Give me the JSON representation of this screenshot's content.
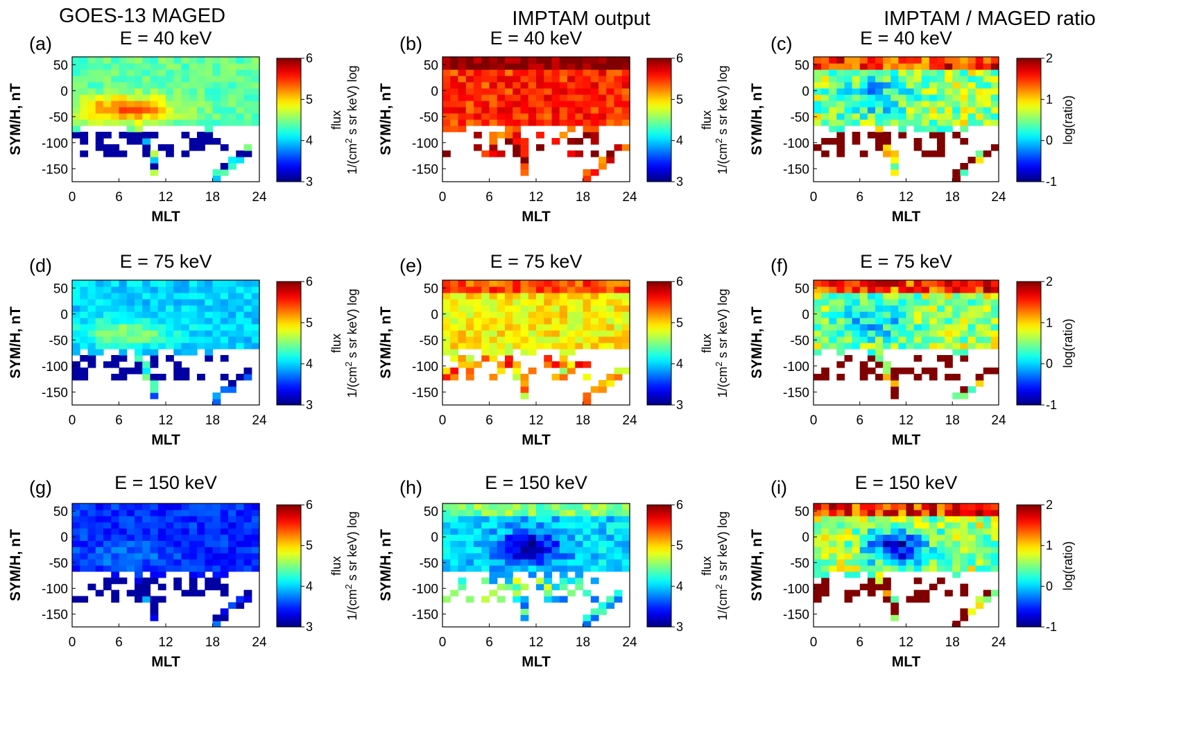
{
  "columns": [
    {
      "title": "GOES-13  MAGED"
    },
    {
      "title": "IMPTAM output"
    },
    {
      "title": "IMPTAM / MAGED ratio"
    }
  ],
  "colorbars": {
    "flux": {
      "ticks": [
        "3",
        "4",
        "5",
        "6"
      ],
      "label_top": "flux",
      "label_bottom_prefix": "1/(cm",
      "label_sup": "2",
      "label_bottom_suffix": " s sr keV) log",
      "range": [
        3,
        6
      ]
    },
    "ratio": {
      "ticks": [
        "-1",
        "0",
        "1",
        "2"
      ],
      "label": "log(ratio)",
      "range": [
        -1,
        2
      ]
    }
  },
  "axes": {
    "xlabel": "MLT",
    "ylabel": "SYM/H, nT",
    "xticks": [
      "0",
      "6",
      "12",
      "18",
      "24"
    ],
    "yticks": [
      "50",
      "0",
      "-50",
      "-100",
      "-150"
    ]
  },
  "panels": [
    {
      "label": "(a)",
      "title": "E = 40 keV"
    },
    {
      "label": "(b)",
      "title": "E = 40 keV"
    },
    {
      "label": "(c)",
      "title": "E = 40 keV"
    },
    {
      "label": "(d)",
      "title": "E = 75 keV"
    },
    {
      "label": "(e)",
      "title": "E = 75 keV"
    },
    {
      "label": "(f)",
      "title": "E = 75 keV"
    },
    {
      "label": "(g)",
      "title": "E = 150 keV"
    },
    {
      "label": "(h)",
      "title": "E = 150 keV"
    },
    {
      "label": "(i)",
      "title": "E = 150 keV"
    }
  ],
  "chart_data": [
    {
      "type": "heatmap",
      "panel": "(a)",
      "title": "E = 40 keV",
      "xlabel": "MLT",
      "ylabel": "SYM/H, nT",
      "xlim": [
        0,
        24
      ],
      "ylim": [
        -175,
        65
      ],
      "colorbar": "flux",
      "clim": [
        3,
        6
      ],
      "variant": "maged",
      "energy_keV": 40
    },
    {
      "type": "heatmap",
      "panel": "(b)",
      "title": "E = 40 keV",
      "xlabel": "MLT",
      "ylabel": "SYM/H, nT",
      "xlim": [
        0,
        24
      ],
      "ylim": [
        -175,
        65
      ],
      "colorbar": "flux",
      "clim": [
        3,
        6
      ],
      "variant": "imptam",
      "energy_keV": 40
    },
    {
      "type": "heatmap",
      "panel": "(c)",
      "title": "E = 40 keV",
      "xlabel": "MLT",
      "ylabel": "SYM/H, nT",
      "xlim": [
        0,
        24
      ],
      "ylim": [
        -175,
        65
      ],
      "colorbar": "ratio",
      "clim": [
        -1,
        2
      ],
      "variant": "ratio",
      "energy_keV": 40
    },
    {
      "type": "heatmap",
      "panel": "(d)",
      "title": "E = 75 keV",
      "xlabel": "MLT",
      "ylabel": "SYM/H, nT",
      "xlim": [
        0,
        24
      ],
      "ylim": [
        -175,
        65
      ],
      "colorbar": "flux",
      "clim": [
        3,
        6
      ],
      "variant": "maged",
      "energy_keV": 75
    },
    {
      "type": "heatmap",
      "panel": "(e)",
      "title": "E = 75 keV",
      "xlabel": "MLT",
      "ylabel": "SYM/H, nT",
      "xlim": [
        0,
        24
      ],
      "ylim": [
        -175,
        65
      ],
      "colorbar": "flux",
      "clim": [
        3,
        6
      ],
      "variant": "imptam",
      "energy_keV": 75
    },
    {
      "type": "heatmap",
      "panel": "(f)",
      "title": "E = 75 keV",
      "xlabel": "MLT",
      "ylabel": "SYM/H, nT",
      "xlim": [
        0,
        24
      ],
      "ylim": [
        -175,
        65
      ],
      "colorbar": "ratio",
      "clim": [
        -1,
        2
      ],
      "variant": "ratio",
      "energy_keV": 75
    },
    {
      "type": "heatmap",
      "panel": "(g)",
      "title": "E = 150 keV",
      "xlabel": "MLT",
      "ylabel": "SYM/H, nT",
      "xlim": [
        0,
        24
      ],
      "ylim": [
        -175,
        65
      ],
      "colorbar": "flux",
      "clim": [
        3,
        6
      ],
      "variant": "maged",
      "energy_keV": 150
    },
    {
      "type": "heatmap",
      "panel": "(h)",
      "title": "E = 150 keV",
      "xlabel": "MLT",
      "ylabel": "SYM/H, nT",
      "xlim": [
        0,
        24
      ],
      "ylim": [
        -175,
        65
      ],
      "colorbar": "flux",
      "clim": [
        3,
        6
      ],
      "variant": "imptam",
      "energy_keV": 150
    },
    {
      "type": "heatmap",
      "panel": "(i)",
      "title": "E = 150 keV",
      "xlabel": "MLT",
      "ylabel": "SYM/H, nT",
      "xlim": [
        0,
        24
      ],
      "ylim": [
        -175,
        65
      ],
      "colorbar": "ratio",
      "clim": [
        -1,
        2
      ],
      "variant": "ratio",
      "energy_keV": 150
    }
  ]
}
